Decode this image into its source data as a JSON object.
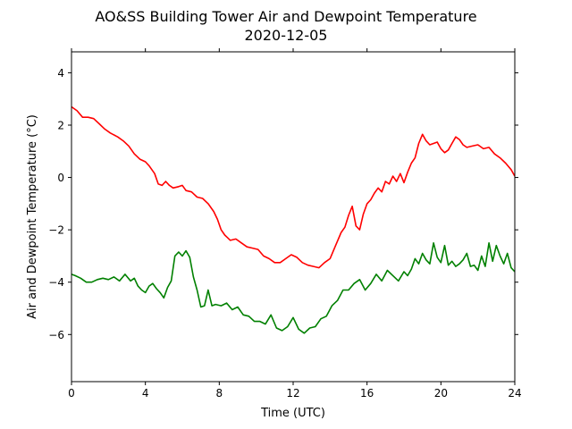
{
  "chart_data": {
    "type": "line",
    "title": "AO&SS Building Tower Air and Dewpoint Temperature",
    "subtitle": "2020-12-05",
    "xlabel": "Time (UTC)",
    "ylabel": "Air and Dewpoint Temperature (°C)",
    "xlim": [
      0,
      24
    ],
    "ylim": [
      -7.8,
      4.8
    ],
    "xticks": [
      0,
      4,
      8,
      12,
      16,
      20,
      24
    ],
    "yticks": [
      -6,
      -4,
      -2,
      0,
      2,
      4
    ],
    "grid": false,
    "series": [
      {
        "color": "#ff0000",
        "x": [
          0,
          0.3,
          0.6,
          0.9,
          1.2,
          1.5,
          1.8,
          2.1,
          2.5,
          2.8,
          3.1,
          3.4,
          3.7,
          4.0,
          4.2,
          4.5,
          4.7,
          4.9,
          5.1,
          5.3,
          5.5,
          5.8,
          6.0,
          6.2,
          6.5,
          6.8,
          7.1,
          7.4,
          7.7,
          7.9,
          8.1,
          8.3,
          8.6,
          8.9,
          9.2,
          9.5,
          9.8,
          10.1,
          10.4,
          10.7,
          11.0,
          11.3,
          11.6,
          11.9,
          12.2,
          12.5,
          12.8,
          13.1,
          13.4,
          13.7,
          14.0,
          14.3,
          14.6,
          14.8,
          15.0,
          15.2,
          15.4,
          15.6,
          15.8,
          16.0,
          16.2,
          16.4,
          16.6,
          16.8,
          17.0,
          17.2,
          17.4,
          17.6,
          17.8,
          18.0,
          18.2,
          18.4,
          18.6,
          18.8,
          19.0,
          19.2,
          19.4,
          19.6,
          19.8,
          20.0,
          20.2,
          20.4,
          20.6,
          20.8,
          21.0,
          21.2,
          21.4,
          21.7,
          22.0,
          22.3,
          22.6,
          22.9,
          23.2,
          23.5,
          23.8,
          24.0
        ],
        "values": [
          2.7,
          2.55,
          2.3,
          2.3,
          2.25,
          2.05,
          1.85,
          1.7,
          1.55,
          1.4,
          1.2,
          0.9,
          0.7,
          0.6,
          0.45,
          0.15,
          -0.25,
          -0.3,
          -0.15,
          -0.3,
          -0.4,
          -0.35,
          -0.3,
          -0.5,
          -0.55,
          -0.75,
          -0.8,
          -1.0,
          -1.3,
          -1.6,
          -2.0,
          -2.2,
          -2.4,
          -2.35,
          -2.5,
          -2.65,
          -2.7,
          -2.75,
          -3.0,
          -3.1,
          -3.25,
          -3.25,
          -3.1,
          -2.95,
          -3.05,
          -3.25,
          -3.35,
          -3.4,
          -3.45,
          -3.25,
          -3.1,
          -2.6,
          -2.1,
          -1.9,
          -1.45,
          -1.1,
          -1.85,
          -2.0,
          -1.4,
          -1.0,
          -0.85,
          -0.6,
          -0.4,
          -0.55,
          -0.15,
          -0.25,
          0.05,
          -0.15,
          0.15,
          -0.2,
          0.2,
          0.55,
          0.75,
          1.3,
          1.65,
          1.4,
          1.25,
          1.3,
          1.35,
          1.1,
          0.95,
          1.05,
          1.3,
          1.55,
          1.45,
          1.25,
          1.15,
          1.2,
          1.25,
          1.1,
          1.15,
          0.9,
          0.75,
          0.55,
          0.3,
          0.05
        ]
      },
      {
        "color": "#008000",
        "x": [
          0,
          0.2,
          0.5,
          0.8,
          1.1,
          1.4,
          1.7,
          2.0,
          2.3,
          2.6,
          2.9,
          3.2,
          3.4,
          3.6,
          3.8,
          4.0,
          4.2,
          4.4,
          4.6,
          4.8,
          5.0,
          5.2,
          5.4,
          5.6,
          5.8,
          6.0,
          6.2,
          6.4,
          6.6,
          6.8,
          7.0,
          7.2,
          7.4,
          7.6,
          7.8,
          8.1,
          8.4,
          8.7,
          9.0,
          9.3,
          9.6,
          9.9,
          10.2,
          10.5,
          10.8,
          11.1,
          11.4,
          11.7,
          12.0,
          12.3,
          12.6,
          12.9,
          13.2,
          13.5,
          13.8,
          14.1,
          14.4,
          14.7,
          15.0,
          15.3,
          15.6,
          15.9,
          16.2,
          16.5,
          16.8,
          17.1,
          17.4,
          17.7,
          18.0,
          18.2,
          18.4,
          18.6,
          18.8,
          19.0,
          19.2,
          19.4,
          19.6,
          19.8,
          20.0,
          20.2,
          20.4,
          20.6,
          20.8,
          21.0,
          21.2,
          21.4,
          21.6,
          21.8,
          22.0,
          22.2,
          22.4,
          22.6,
          22.8,
          23.0,
          23.2,
          23.4,
          23.6,
          23.8,
          24.0
        ],
        "values": [
          -3.7,
          -3.75,
          -3.85,
          -4.0,
          -4.0,
          -3.9,
          -3.85,
          -3.9,
          -3.8,
          -3.95,
          -3.7,
          -3.95,
          -3.85,
          -4.15,
          -4.3,
          -4.4,
          -4.15,
          -4.05,
          -4.25,
          -4.4,
          -4.6,
          -4.2,
          -3.95,
          -3.0,
          -2.85,
          -3.0,
          -2.8,
          -3.05,
          -3.8,
          -4.3,
          -4.95,
          -4.9,
          -4.3,
          -4.9,
          -4.85,
          -4.9,
          -4.8,
          -5.05,
          -4.95,
          -5.25,
          -5.3,
          -5.5,
          -5.5,
          -5.6,
          -5.25,
          -5.75,
          -5.85,
          -5.7,
          -5.35,
          -5.8,
          -5.95,
          -5.75,
          -5.7,
          -5.4,
          -5.3,
          -4.9,
          -4.7,
          -4.3,
          -4.3,
          -4.05,
          -3.9,
          -4.3,
          -4.05,
          -3.7,
          -3.95,
          -3.55,
          -3.75,
          -3.95,
          -3.6,
          -3.75,
          -3.5,
          -3.1,
          -3.3,
          -2.9,
          -3.15,
          -3.3,
          -2.5,
          -3.05,
          -3.25,
          -2.6,
          -3.35,
          -3.2,
          -3.4,
          -3.3,
          -3.15,
          -2.9,
          -3.4,
          -3.35,
          -3.55,
          -3.0,
          -3.4,
          -2.5,
          -3.2,
          -2.6,
          -3.0,
          -3.3,
          -2.9,
          -3.45,
          -3.6
        ]
      }
    ]
  }
}
